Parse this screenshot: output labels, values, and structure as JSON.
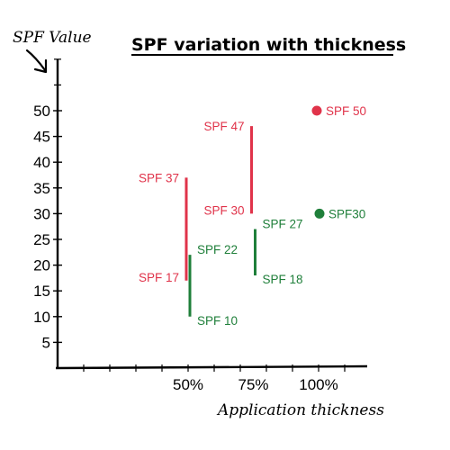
{
  "chart_data": {
    "type": "scatter",
    "title": "SPF variation with thickness",
    "xlabel": "Application thickness",
    "ylabel": "SPF Value",
    "ylim": [
      0,
      50
    ],
    "xlim": [
      0,
      120
    ],
    "yticks": [
      5,
      10,
      15,
      20,
      25,
      30,
      35,
      40,
      45,
      50
    ],
    "xticks": [
      {
        "value": 50,
        "label": "50%"
      },
      {
        "value": 75,
        "label": "75%"
      },
      {
        "value": 100,
        "label": "100%"
      }
    ],
    "grid": false,
    "colors": {
      "red": "#e0334a",
      "green": "#1f7f3a"
    },
    "series": [
      {
        "color": "red",
        "ranges": [
          {
            "x": 50,
            "low": 17,
            "high": 37,
            "low_label": "SPF 17",
            "high_label": "SPF 37"
          },
          {
            "x": 75,
            "low": 30,
            "high": 47,
            "low_label": "SPF 30",
            "high_label": "SPF 47"
          }
        ],
        "points": [
          {
            "x": 100,
            "y": 50,
            "label": "SPF 50"
          }
        ]
      },
      {
        "color": "green",
        "ranges": [
          {
            "x": 50,
            "low": 10,
            "high": 22,
            "low_label": "SPF 10",
            "high_label": "SPF 22"
          },
          {
            "x": 75,
            "low": 18,
            "high": 27,
            "low_label": "SPF 18",
            "high_label": "SPF 27"
          }
        ],
        "points": [
          {
            "x": 100,
            "y": 30,
            "label": "SPF30"
          }
        ]
      }
    ]
  }
}
